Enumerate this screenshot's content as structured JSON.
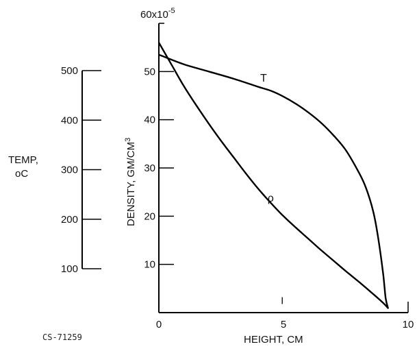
{
  "figure_id": "CS-71259",
  "chart_data": {
    "type": "line",
    "xlabel": "HEIGHT, CM",
    "xlim": [
      0,
      10
    ],
    "x_ticks": [
      "0",
      "5",
      "10"
    ],
    "ylabel": "DENSITY, GM/CM3",
    "ylabel_main": "DENSITY,  GM/CM",
    "ylabel_superscript": "3",
    "ylim": [
      0,
      60
    ],
    "y_ticks": [
      "10",
      "20",
      "30",
      "40",
      "50"
    ],
    "y_top_label": "60x10",
    "y_top_exponent": "-5",
    "secondary_axis": {
      "label_line1": "TEMP,",
      "label_line2": "oC",
      "range": [
        100,
        500
      ],
      "ticks": [
        "100",
        "200",
        "300",
        "400",
        "500"
      ]
    },
    "series": [
      {
        "name": "T",
        "axis": "density",
        "x": [
          0.0,
          1.0,
          2.0,
          3.0,
          4.0,
          4.5,
          5.0,
          5.5,
          6.0,
          6.5,
          7.0,
          7.5,
          8.0,
          8.3,
          8.6,
          8.8,
          9.0,
          9.1,
          9.2
        ],
        "values": [
          53.5,
          51.5,
          50.0,
          48.5,
          46.8,
          46.0,
          44.8,
          43.3,
          41.5,
          39.4,
          36.8,
          33.7,
          29.3,
          26.0,
          21.0,
          15.5,
          8.0,
          3.0,
          0.8
        ]
      },
      {
        "name": "ρ",
        "axis": "density",
        "x": [
          0.0,
          0.5,
          1.0,
          1.5,
          2.0,
          2.5,
          3.0,
          3.5,
          4.0,
          4.5,
          5.0,
          5.5,
          6.0,
          6.5,
          7.0,
          7.5,
          8.0,
          8.5,
          9.0,
          9.2
        ],
        "values": [
          56.0,
          51.5,
          47.0,
          43.0,
          39.2,
          35.6,
          32.2,
          28.8,
          25.6,
          22.7,
          20.0,
          17.6,
          15.3,
          13.0,
          10.8,
          8.6,
          6.5,
          4.3,
          2.0,
          0.9
        ]
      }
    ],
    "annotations": [
      {
        "text": "I",
        "x": 4.95,
        "y": 1.8
      }
    ],
    "grid": false,
    "legend": "none"
  }
}
